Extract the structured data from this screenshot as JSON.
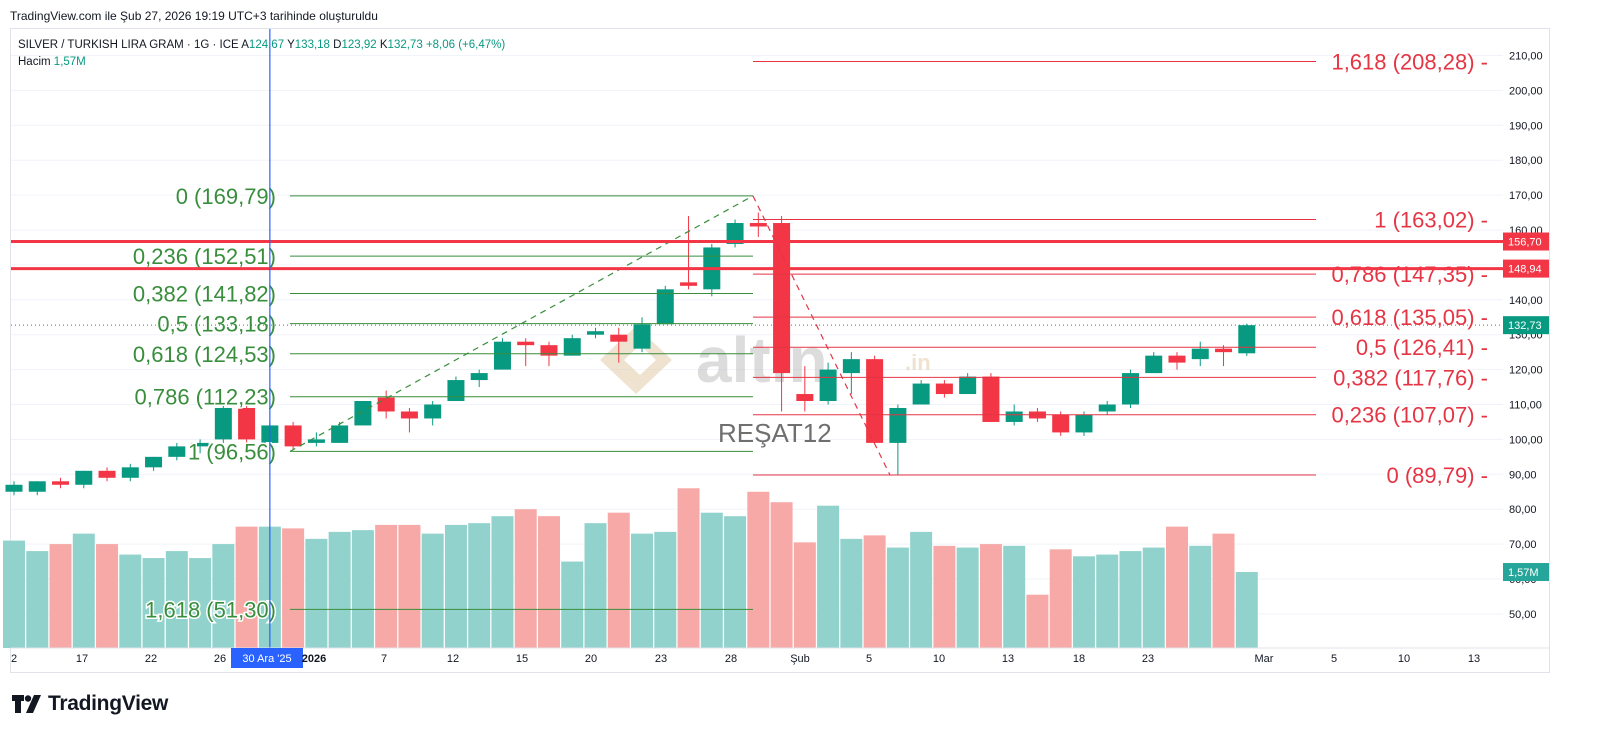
{
  "snapshot_caption": "TradingView.com ile Şub 27, 2026 19:19 UTC+3 tarihinde oluşturuldu",
  "legend": {
    "symbol": "SILVER / TURKISH LIRA GRAM · 1G · ICE",
    "open_label": "A",
    "open": "124,67",
    "high_label": "Y",
    "high": "133,18",
    "low_label": "D",
    "low": "123,92",
    "close_label": "K",
    "close": "132,73",
    "change": "+8,06 (+6,47%)",
    "volume_label": "Hacim",
    "volume": "1,57M"
  },
  "brand": {
    "logo_icon": "tradingview-logo-icon",
    "name": "TradingView"
  },
  "watermark": {
    "logo_text": "altin",
    "logo_suffix": ".in",
    "author": "REŞAT12"
  },
  "colors": {
    "up": "#089981",
    "down": "#f23645",
    "up_volume": "#92d2cc",
    "down_volume": "#f7a9a7",
    "fib_up": "#388e3c",
    "fib_down": "#e53545",
    "crosshair": "#2962ff"
  },
  "chart_data": {
    "type": "candlestick",
    "title": "SILVER / TURKISH LIRA GRAM",
    "interval": "1G",
    "x_ticks": [
      "2",
      "17",
      "22",
      "26",
      "30 Ara '25",
      "2026",
      "7",
      "12",
      "15",
      "20",
      "23",
      "28",
      "Şub",
      "5",
      "10",
      "13",
      "18",
      "23",
      "Mar",
      "5",
      "10",
      "13"
    ],
    "y_ticks": [
      "210,00",
      "200,00",
      "190,00",
      "180,00",
      "170,00",
      "160,00",
      "150,00",
      "140,00",
      "130,00",
      "120,00",
      "110,00",
      "100,00",
      "90,00",
      "80,00",
      "70,00",
      "60,00",
      "50,00"
    ],
    "ylim": [
      40,
      215
    ],
    "price_tags": [
      {
        "label": "156,70",
        "value": 156.7,
        "color": "#f23645"
      },
      {
        "label": "148,94",
        "value": 148.94,
        "color": "#f23645"
      },
      {
        "label": "132,73",
        "value": 132.73,
        "color": "#089981"
      },
      {
        "label": "1,57M",
        "value": 62,
        "color": "#26a69a"
      }
    ],
    "horizontal_levels": [
      156.7,
      148.94
    ],
    "crosshair_label": "30 Ara '25",
    "candles": [
      {
        "o": 85,
        "h": 88,
        "l": 84,
        "c": 87,
        "v": 71
      },
      {
        "o": 85,
        "h": 88,
        "l": 84,
        "c": 88,
        "v": 68
      },
      {
        "o": 88,
        "h": 89,
        "l": 86,
        "c": 87,
        "v": 70
      },
      {
        "o": 87,
        "h": 91,
        "l": 86,
        "c": 91,
        "v": 73
      },
      {
        "o": 91,
        "h": 92,
        "l": 88,
        "c": 89,
        "v": 70
      },
      {
        "o": 89,
        "h": 93,
        "l": 88,
        "c": 92,
        "v": 67
      },
      {
        "o": 92,
        "h": 95,
        "l": 91,
        "c": 95,
        "v": 66
      },
      {
        "o": 95,
        "h": 99,
        "l": 94,
        "c": 98,
        "v": 68
      },
      {
        "o": 98,
        "h": 100,
        "l": 96,
        "c": 99,
        "v": 66
      },
      {
        "o": 100,
        "h": 110,
        "l": 99,
        "c": 109,
        "v": 70
      },
      {
        "o": 109,
        "h": 110,
        "l": 99,
        "c": 100,
        "v": 75
      },
      {
        "o": 99,
        "h": 105,
        "l": 96.5,
        "c": 104,
        "v": 75
      },
      {
        "o": 104,
        "h": 105,
        "l": 97,
        "c": 98,
        "v": 74.5
      },
      {
        "o": 99,
        "h": 102,
        "l": 98,
        "c": 100,
        "v": 71.5
      },
      {
        "o": 99,
        "h": 105,
        "l": 99,
        "c": 104,
        "v": 73.5
      },
      {
        "o": 104,
        "h": 111,
        "l": 104,
        "c": 111,
        "v": 74
      },
      {
        "o": 112,
        "h": 114,
        "l": 106,
        "c": 108,
        "v": 75.5
      },
      {
        "o": 108,
        "h": 109,
        "l": 102,
        "c": 106,
        "v": 75.5
      },
      {
        "o": 106,
        "h": 111,
        "l": 104,
        "c": 110,
        "v": 73
      },
      {
        "o": 111,
        "h": 118,
        "l": 111,
        "c": 117,
        "v": 75.5
      },
      {
        "o": 117,
        "h": 120,
        "l": 115,
        "c": 119,
        "v": 76
      },
      {
        "o": 120,
        "h": 129,
        "l": 120,
        "c": 128,
        "v": 78
      },
      {
        "o": 128,
        "h": 129,
        "l": 121,
        "c": 127,
        "v": 80
      },
      {
        "o": 127,
        "h": 128,
        "l": 121,
        "c": 124,
        "v": 78
      },
      {
        "o": 124,
        "h": 130,
        "l": 124,
        "c": 129,
        "v": 65
      },
      {
        "o": 130,
        "h": 132,
        "l": 129,
        "c": 131,
        "v": 76
      },
      {
        "o": 130,
        "h": 132,
        "l": 122,
        "c": 128,
        "v": 79
      },
      {
        "o": 126,
        "h": 135,
        "l": 125,
        "c": 133,
        "v": 73
      },
      {
        "o": 133,
        "h": 144,
        "l": 133,
        "c": 143,
        "v": 73.5
      },
      {
        "o": 145,
        "h": 164,
        "l": 143,
        "c": 144,
        "v": 86
      },
      {
        "o": 143,
        "h": 156,
        "l": 141,
        "c": 155,
        "v": 79
      },
      {
        "o": 156,
        "h": 163,
        "l": 155,
        "c": 162,
        "v": 78
      },
      {
        "o": 162,
        "h": 165,
        "l": 158,
        "c": 161,
        "v": 85
      },
      {
        "o": 162,
        "h": 164,
        "l": 108,
        "c": 119,
        "v": 82
      },
      {
        "o": 113,
        "h": 121,
        "l": 108,
        "c": 111,
        "v": 70.5
      },
      {
        "o": 111,
        "h": 122,
        "l": 110,
        "c": 120,
        "v": 81
      },
      {
        "o": 119,
        "h": 125,
        "l": 113,
        "c": 123,
        "v": 71.5
      },
      {
        "o": 123,
        "h": 124,
        "l": 99,
        "c": 99,
        "v": 72.5
      },
      {
        "o": 99,
        "h": 110,
        "l": 89.8,
        "c": 109,
        "v": 69
      },
      {
        "o": 110,
        "h": 117,
        "l": 110,
        "c": 116,
        "v": 73.5
      },
      {
        "o": 116,
        "h": 117,
        "l": 112,
        "c": 113,
        "v": 69.5
      },
      {
        "o": 113,
        "h": 119,
        "l": 113,
        "c": 118,
        "v": 69
      },
      {
        "o": 118,
        "h": 119,
        "l": 105,
        "c": 105,
        "v": 70
      },
      {
        "o": 105,
        "h": 110,
        "l": 104,
        "c": 108,
        "v": 69.5
      },
      {
        "o": 108,
        "h": 109,
        "l": 105,
        "c": 106,
        "v": 55.5
      },
      {
        "o": 107,
        "h": 108,
        "l": 101,
        "c": 102,
        "v": 68.5
      },
      {
        "o": 102,
        "h": 108,
        "l": 101,
        "c": 107,
        "v": 66.5
      },
      {
        "o": 108,
        "h": 111,
        "l": 107,
        "c": 110,
        "v": 67
      },
      {
        "o": 110,
        "h": 120,
        "l": 109,
        "c": 119,
        "v": 68
      },
      {
        "o": 119,
        "h": 125,
        "l": 119,
        "c": 124,
        "v": 69
      },
      {
        "o": 124,
        "h": 125,
        "l": 120,
        "c": 122,
        "v": 75
      },
      {
        "o": 123,
        "h": 128,
        "l": 121,
        "c": 126,
        "v": 69.5
      },
      {
        "o": 126,
        "h": 127,
        "l": 121,
        "c": 125,
        "v": 73
      },
      {
        "o": 124.67,
        "h": 133.18,
        "l": 123.92,
        "c": 132.73,
        "v": 62
      }
    ],
    "fib_up": {
      "levels": [
        {
          "label": "0 (169,79)",
          "value": 169.79
        },
        {
          "label": "0,236 (152,51)",
          "value": 152.51
        },
        {
          "label": "0,382 (141,82)",
          "value": 141.82
        },
        {
          "label": "0,5 (133,18)",
          "value": 133.18
        },
        {
          "label": "0,618 (124,53)",
          "value": 124.53
        },
        {
          "label": "0,786 (112,23)",
          "value": 112.23
        },
        {
          "label": "1 (96,56)",
          "value": 96.56
        },
        {
          "label": "1,618 (51,30)",
          "value": 51.3
        }
      ]
    },
    "fib_down": {
      "levels": [
        {
          "label": "1,618 (208,28)",
          "value": 208.28
        },
        {
          "label": "1 (163,02)",
          "value": 163.02
        },
        {
          "label": "0,786 (147,35)",
          "value": 147.35
        },
        {
          "label": "0,618 (135,05)",
          "value": 135.05
        },
        {
          "label": "0,5 (126,41)",
          "value": 126.41
        },
        {
          "label": "0,382 (117,76)",
          "value": 117.76
        },
        {
          "label": "0,236 (107,07)",
          "value": 107.07
        },
        {
          "label": "0 (89,79)",
          "value": 89.79
        }
      ]
    }
  }
}
